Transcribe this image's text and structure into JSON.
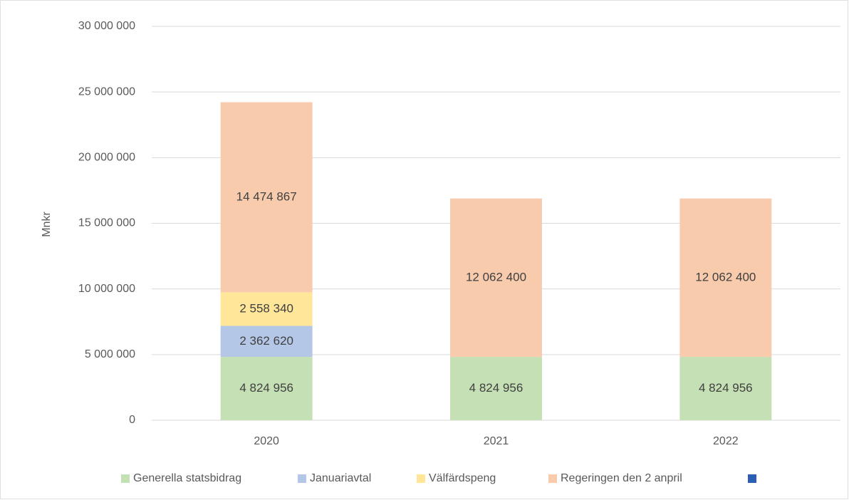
{
  "chart_data": {
    "type": "stacked_bar",
    "y_label": "Mnkr",
    "categories": [
      "2020",
      "2021",
      "2022"
    ],
    "series": [
      {
        "name": "Generella statsbidrag",
        "color": "#c5e0b4",
        "values": [
          4824956,
          4824956,
          4824956
        ],
        "value_labels": [
          "4 824 956",
          "4 824 956",
          "4 824 956"
        ]
      },
      {
        "name": "Januariavtal",
        "color": "#b4c7e7",
        "values": [
          2362620,
          null,
          null
        ],
        "value_labels": [
          "2 362 620",
          null,
          null
        ]
      },
      {
        "name": "Välfärdspeng",
        "color": "#ffe699",
        "values": [
          2558340,
          null,
          null
        ],
        "value_labels": [
          "2 558 340",
          null,
          null
        ]
      },
      {
        "name": "Regeringen den 2 anpril",
        "color": "#f8cbad",
        "values": [
          14474867,
          12062400,
          12062400
        ],
        "value_labels": [
          "14 474 867",
          "12 062 400",
          "12 062 400"
        ]
      },
      {
        "color": "#2e5fb3",
        "values": [
          null,
          null,
          null
        ]
      }
    ],
    "ylim": [
      0,
      30000000
    ],
    "yticks": [
      0,
      {
        "value": 5000000,
        "label": "5 000 000"
      },
      {
        "value": 10000000,
        "label": "10 000 000"
      },
      {
        "value": 15000000,
        "label": "15 000 000"
      },
      {
        "value": 20000000,
        "label": "20 000 000"
      },
      {
        "value": 25000000,
        "label": "25 000 000"
      },
      {
        "value": 30000000,
        "label": "30 000 000"
      }
    ],
    "grid": true,
    "legend": "bottom"
  }
}
